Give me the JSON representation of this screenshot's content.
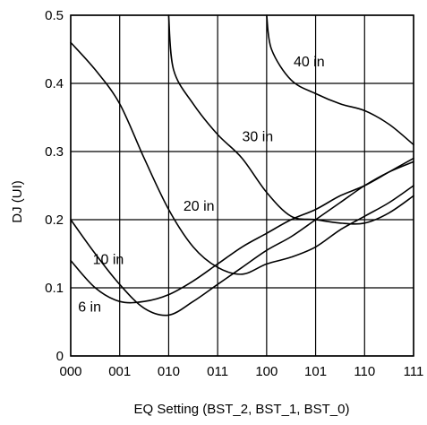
{
  "chart_data": {
    "type": "line",
    "xlabel": "EQ Setting (BST_2, BST_1, BST_0)",
    "ylabel": "DJ (UI)",
    "categories": [
      "000",
      "001",
      "010",
      "011",
      "100",
      "101",
      "110",
      "111"
    ],
    "x_range": [
      0,
      7
    ],
    "ylim": [
      0,
      0.5
    ],
    "y_ticks": [
      "0",
      "0.1",
      "0.2",
      "0.3",
      "0.4",
      "0.5"
    ],
    "y_tick_values": [
      0,
      0.1,
      0.2,
      0.3,
      0.4,
      0.5
    ],
    "grid": true,
    "series": [
      {
        "name": "6 in",
        "label_at": [
          0.15,
          0.065
        ],
        "points": [
          [
            0,
            0.14
          ],
          [
            0.5,
            0.1
          ],
          [
            1,
            0.08
          ],
          [
            1.5,
            0.08
          ],
          [
            2,
            0.09
          ],
          [
            2.5,
            0.11
          ],
          [
            3,
            0.135
          ],
          [
            3.5,
            0.16
          ],
          [
            4,
            0.18
          ],
          [
            4.5,
            0.2
          ],
          [
            5,
            0.215
          ],
          [
            5.5,
            0.235
          ],
          [
            6,
            0.25
          ],
          [
            6.5,
            0.27
          ],
          [
            7,
            0.29
          ]
        ]
      },
      {
        "name": "10 in",
        "label_at": [
          0.45,
          0.135
        ],
        "points": [
          [
            0,
            0.2
          ],
          [
            0.5,
            0.15
          ],
          [
            1,
            0.105
          ],
          [
            1.5,
            0.07
          ],
          [
            2,
            0.06
          ],
          [
            2.5,
            0.08
          ],
          [
            3,
            0.105
          ],
          [
            3.5,
            0.13
          ],
          [
            4,
            0.155
          ],
          [
            4.5,
            0.175
          ],
          [
            5,
            0.2
          ],
          [
            5.5,
            0.225
          ],
          [
            6,
            0.25
          ],
          [
            6.5,
            0.27
          ],
          [
            7,
            0.285
          ]
        ]
      },
      {
        "name": "20 in",
        "label_at": [
          2.3,
          0.213
        ],
        "points": [
          [
            0,
            0.46
          ],
          [
            0.5,
            0.42
          ],
          [
            1,
            0.37
          ],
          [
            1.5,
            0.29
          ],
          [
            2,
            0.215
          ],
          [
            2.5,
            0.16
          ],
          [
            3,
            0.13
          ],
          [
            3.5,
            0.12
          ],
          [
            4,
            0.135
          ],
          [
            4.5,
            0.145
          ],
          [
            5,
            0.16
          ],
          [
            5.5,
            0.185
          ],
          [
            6,
            0.205
          ],
          [
            6.5,
            0.225
          ],
          [
            7,
            0.25
          ]
        ]
      },
      {
        "name": "30 in",
        "label_at": [
          3.5,
          0.315
        ],
        "points": [
          [
            2,
            0.5
          ],
          [
            2.1,
            0.42
          ],
          [
            2.5,
            0.37
          ],
          [
            3,
            0.325
          ],
          [
            3.5,
            0.29
          ],
          [
            4,
            0.24
          ],
          [
            4.5,
            0.205
          ],
          [
            5,
            0.2
          ],
          [
            5.5,
            0.195
          ],
          [
            6,
            0.195
          ],
          [
            6.5,
            0.21
          ],
          [
            7,
            0.235
          ]
        ]
      },
      {
        "name": "40 in",
        "label_at": [
          4.55,
          0.425
        ],
        "points": [
          [
            4,
            0.5
          ],
          [
            4.1,
            0.45
          ],
          [
            4.5,
            0.405
          ],
          [
            5,
            0.385
          ],
          [
            5.5,
            0.37
          ],
          [
            6,
            0.36
          ],
          [
            6.5,
            0.34
          ],
          [
            7,
            0.31
          ]
        ]
      }
    ]
  }
}
